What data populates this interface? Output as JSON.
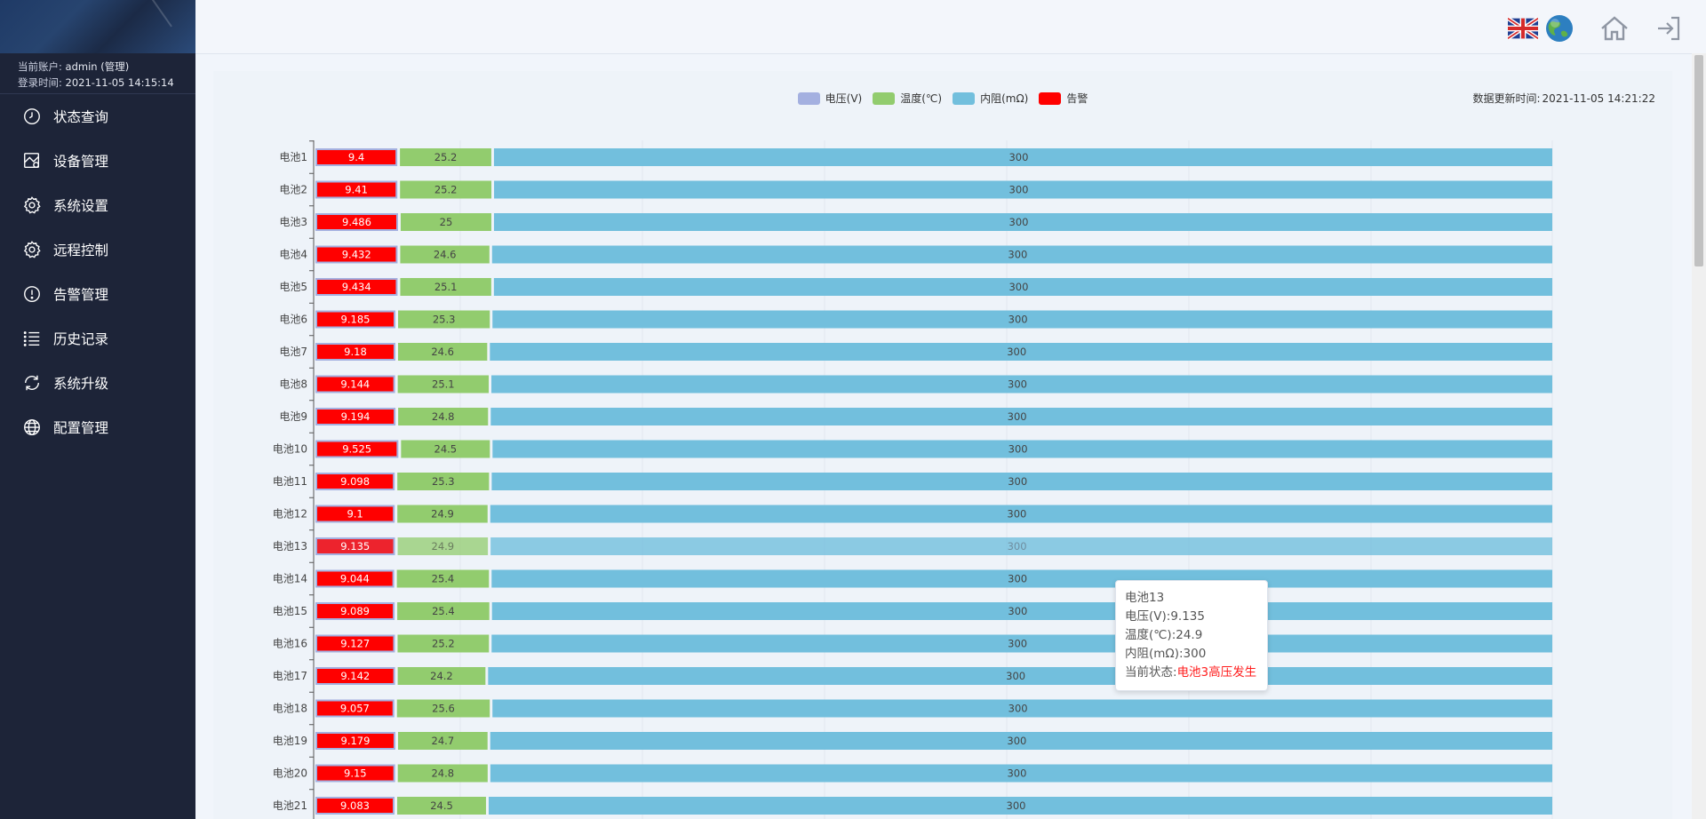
{
  "account": {
    "user_label": "当前账户:",
    "user_value": "admin (管理)",
    "login_label": "登录时间:",
    "login_value": "2021-11-05 14:15:14"
  },
  "menu": [
    {
      "label": "状态查询",
      "icon": "clock-icon"
    },
    {
      "label": "设备管理",
      "icon": "device-icon"
    },
    {
      "label": "系统设置",
      "icon": "gear-icon"
    },
    {
      "label": "远程控制",
      "icon": "gear-icon"
    },
    {
      "label": "告警管理",
      "icon": "alert-icon"
    },
    {
      "label": "历史记录",
      "icon": "list-icon"
    },
    {
      "label": "系统升级",
      "icon": "refresh-icon"
    },
    {
      "label": "配置管理",
      "icon": "globe-icon"
    }
  ],
  "topbar": {
    "icons": [
      "uk-flag-icon",
      "globe-icon",
      "home-icon",
      "logout-icon"
    ]
  },
  "update": {
    "label": "数据更新时间:",
    "value": "2021-11-05 14:21:22"
  },
  "tooltip": {
    "title": "电池13",
    "voltage": "电压(V):9.135",
    "temperature": "温度(℃):24.9",
    "resistance": "内阻(mΩ):300",
    "status_label": "当前状态:",
    "status_value": "电池3高压发生"
  },
  "colors": {
    "voltage": "#a4b0e0",
    "temperature": "#92cc6e",
    "resistance": "#72bfdd",
    "alarm": "#ff0000"
  },
  "chart_data": {
    "type": "bar",
    "stacked": true,
    "orientation": "horizontal",
    "legend": [
      "电压(V)",
      "温度(℃)",
      "内阻(mΩ)",
      "告警"
    ],
    "legend_position": "top-center",
    "categories": [
      "电池1",
      "电池2",
      "电池3",
      "电池4",
      "电池5",
      "电池6",
      "电池7",
      "电池8",
      "电池9",
      "电池10",
      "电池11",
      "电池12",
      "电池13",
      "电池14",
      "电池15",
      "电池16",
      "电池17",
      "电池18",
      "电池19",
      "电池20",
      "电池21"
    ],
    "series": [
      {
        "name": "电压(V)",
        "values": [
          9.4,
          9.41,
          9.486,
          9.432,
          9.434,
          9.185,
          9.18,
          9.144,
          9.194,
          9.525,
          9.098,
          9.1,
          9.135,
          9.044,
          9.089,
          9.127,
          9.142,
          9.057,
          9.179,
          9.15,
          9.083
        ]
      },
      {
        "name": "温度(℃)",
        "values": [
          25.2,
          25.2,
          25,
          24.6,
          25.1,
          25.3,
          24.6,
          25.1,
          24.8,
          24.5,
          25.3,
          24.9,
          24.9,
          25.4,
          25.4,
          25.2,
          24.2,
          25.6,
          24.7,
          24.8,
          24.5
        ]
      },
      {
        "name": "内阻(mΩ)",
        "values": [
          300,
          300,
          300,
          300,
          300,
          300,
          300,
          300,
          300,
          300,
          300,
          300,
          300,
          300,
          300,
          300,
          300,
          300,
          300,
          300,
          300
        ]
      }
    ],
    "alarm": [
      true,
      true,
      true,
      true,
      true,
      true,
      true,
      true,
      true,
      true,
      true,
      true,
      true,
      true,
      true,
      true,
      true,
      true,
      true,
      true,
      true
    ],
    "highlighted": "电池13",
    "grid": true
  }
}
